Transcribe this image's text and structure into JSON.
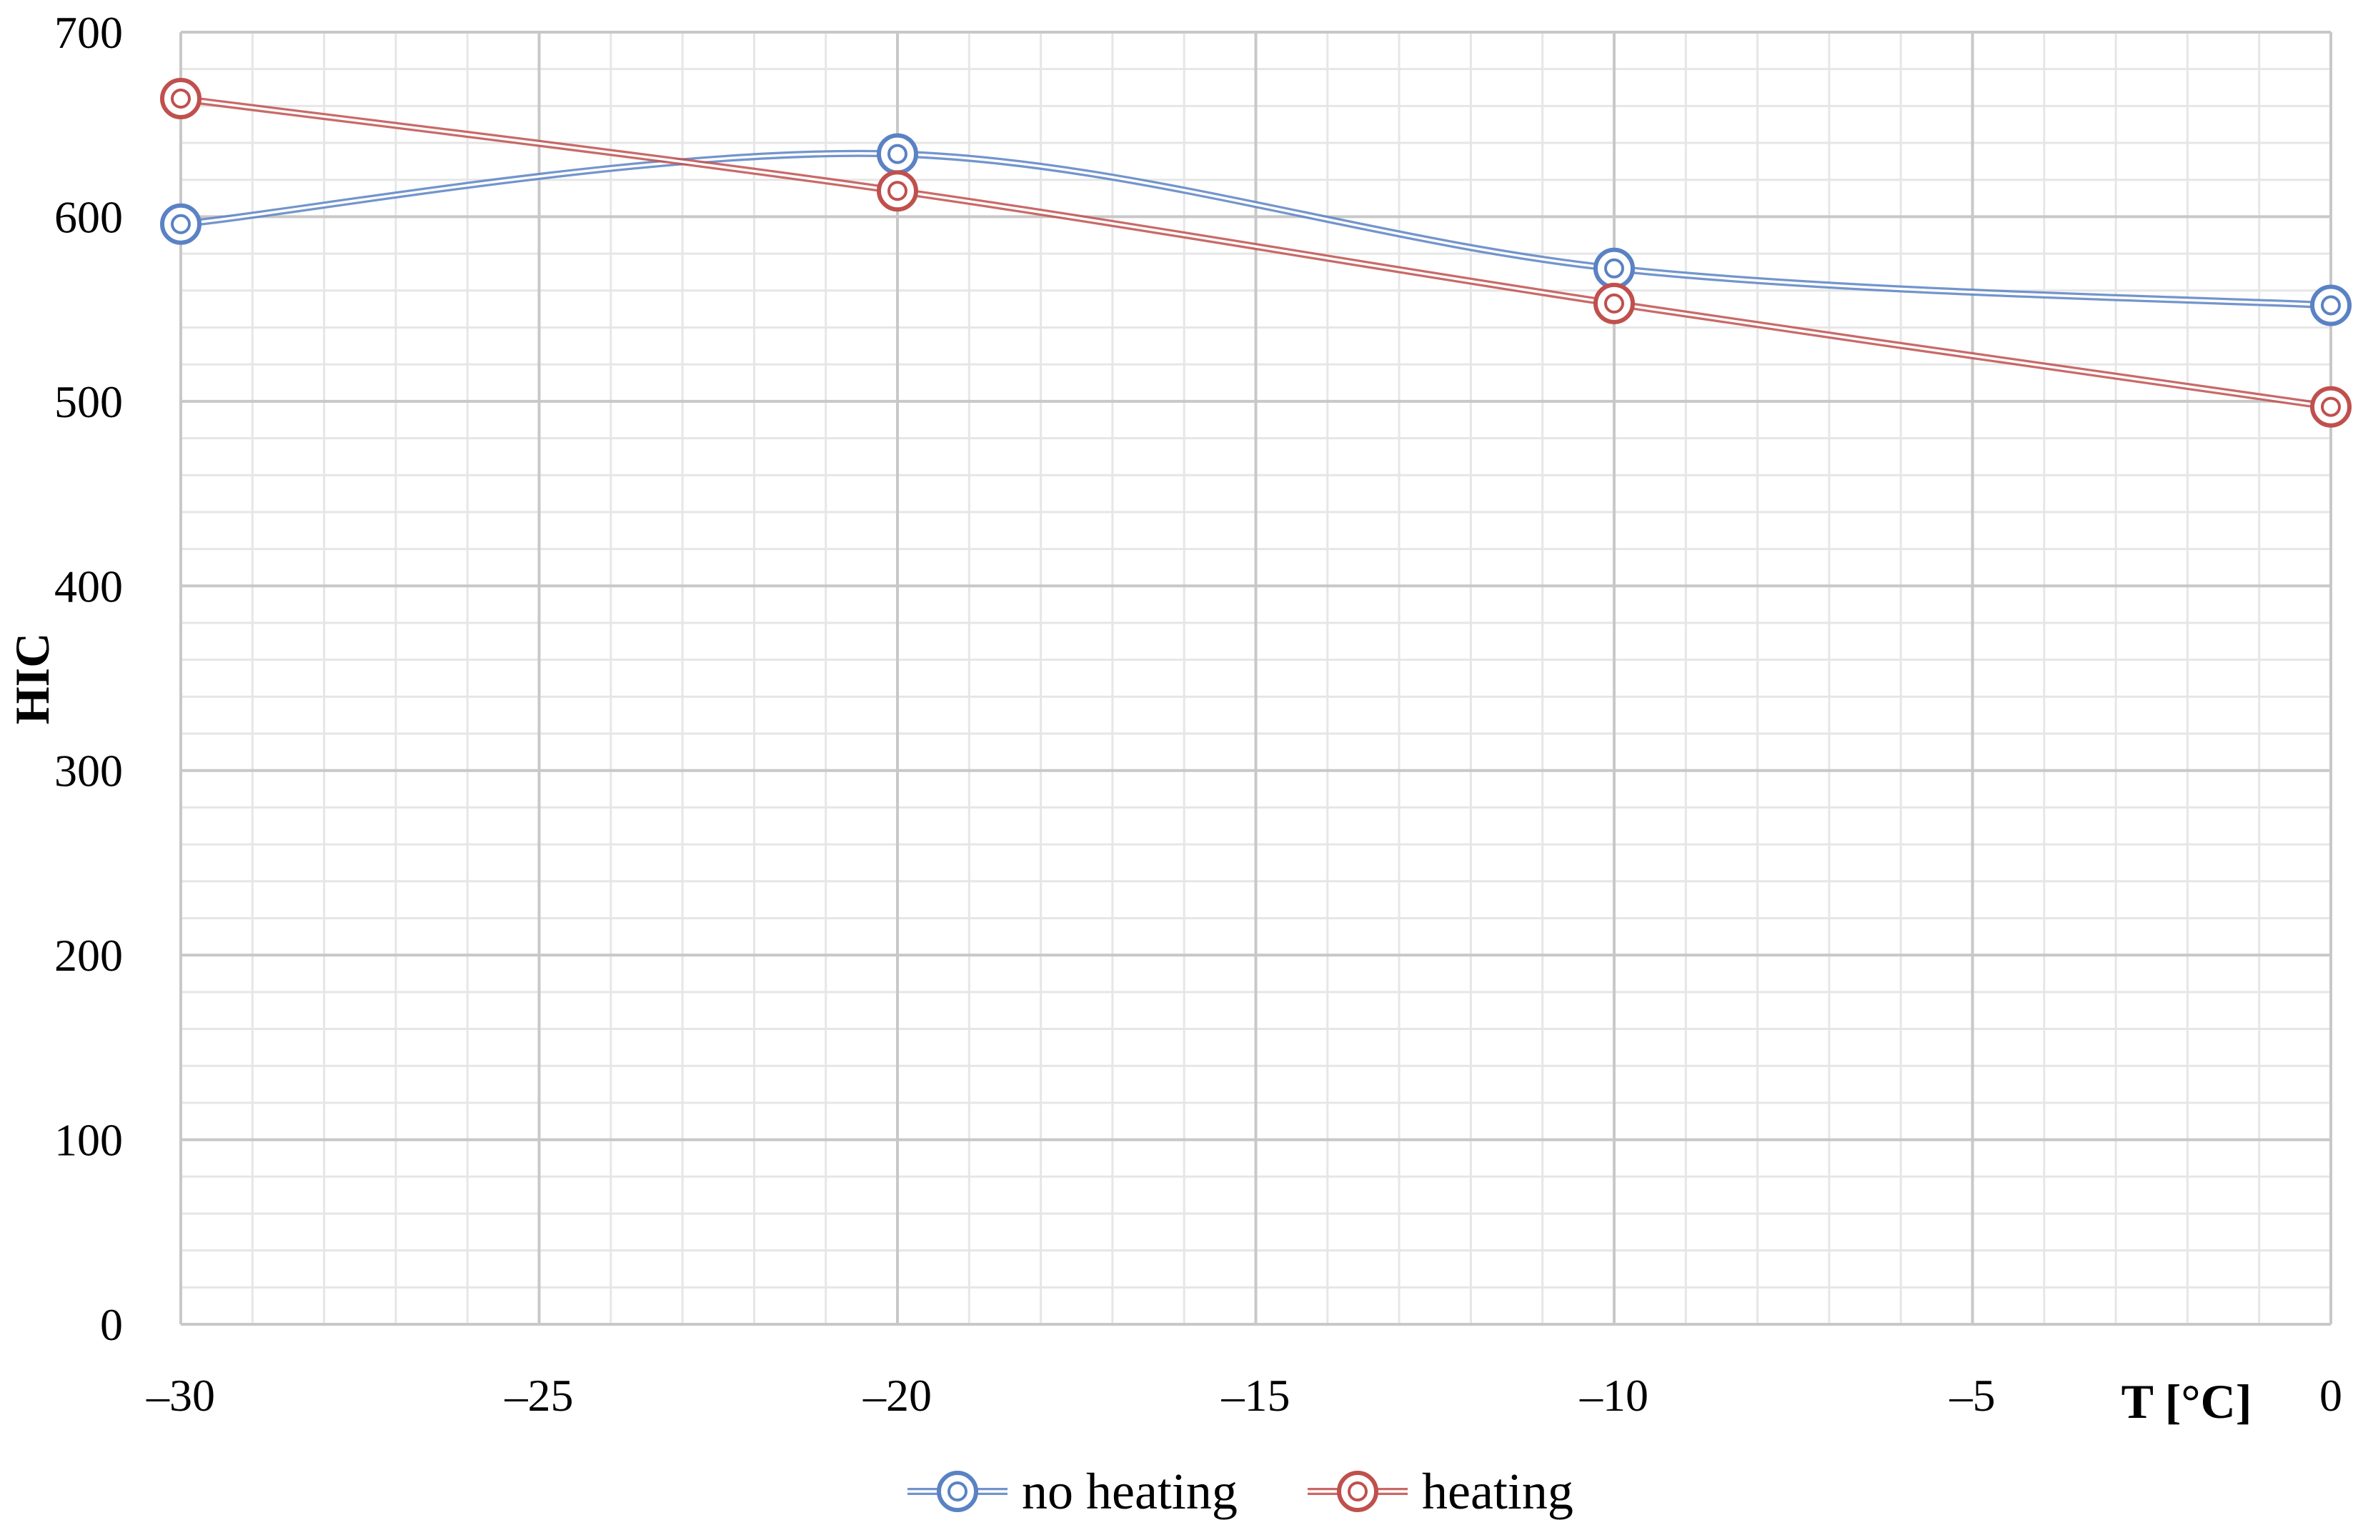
{
  "chart_data": {
    "type": "line",
    "x": [
      -30,
      -20,
      -10,
      0
    ],
    "series": [
      {
        "name": "no heating",
        "values": [
          596,
          634,
          572,
          552
        ],
        "color": "#5a82c4",
        "marker": "double-circle"
      },
      {
        "name": "heating",
        "values": [
          664,
          614,
          553,
          497
        ],
        "color": "#c0504d",
        "marker": "double-circle"
      }
    ],
    "xlabel": "T [°C]",
    "ylabel": "HIC",
    "xlim": [
      -30,
      0
    ],
    "ylim": [
      0,
      700
    ],
    "x_ticks": [
      -30,
      -25,
      -20,
      -15,
      -10,
      -5,
      0
    ],
    "x_tick_labels": [
      "–30",
      "–25",
      "–20",
      "–15",
      "–10",
      "–5",
      "0"
    ],
    "y_ticks": [
      0,
      100,
      200,
      300,
      400,
      500,
      600,
      700
    ],
    "y_tick_labels": [
      "0",
      "100",
      "200",
      "300",
      "400",
      "500",
      "600",
      "700"
    ],
    "grid": {
      "major": true,
      "minor": true
    },
    "legend_position": "bottom-center",
    "smooth_lines": true
  }
}
